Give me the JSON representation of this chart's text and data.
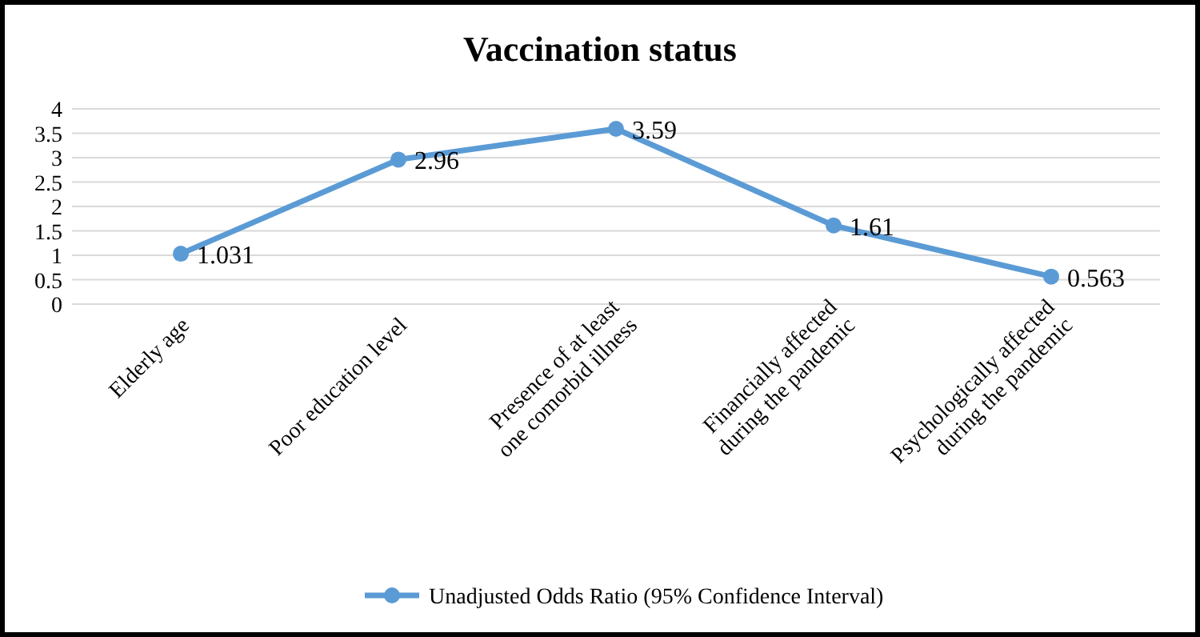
{
  "chart_data": {
    "type": "line",
    "title": "Vaccination status",
    "categories": [
      "Elderly age",
      "Poor education level",
      "Presence of at least\none comorbid illness",
      "Financially affected\nduring the pandemic",
      "Psychologically affected\nduring the pandemic"
    ],
    "series": [
      {
        "name": "Unadjusted Odds Ratio (95% Confidence Interval)",
        "color": "#5b9bd5",
        "values": [
          1.031,
          2.96,
          3.59,
          1.61,
          0.563
        ]
      }
    ],
    "ylim": [
      0,
      4
    ],
    "yticks": [
      0,
      0.5,
      1,
      1.5,
      2,
      2.5,
      3,
      3.5,
      4
    ],
    "grid": "y",
    "legend": "bottom",
    "marker": "circle",
    "data_labels": true
  }
}
